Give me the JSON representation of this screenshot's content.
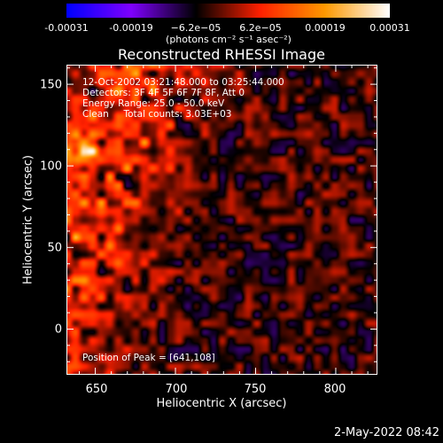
{
  "colorbar": {
    "ticks": [
      "-0.00031",
      "-0.00019",
      "−6.2e−05",
      "6.2e−05",
      "0.00019",
      "0.00031"
    ],
    "units": "(photons cm⁻² s⁻¹ asec⁻²)"
  },
  "chart_data": {
    "type": "heatmap",
    "title": "Reconstructed RHESSI Image",
    "xlabel": "Heliocentric X (arcsec)",
    "ylabel": "Heliocentric Y (arcsec)",
    "xlim": [
      632,
      826
    ],
    "ylim": [
      -28,
      162
    ],
    "xticks": [
      "650",
      "700",
      "750",
      "800"
    ],
    "yticks": [
      "150",
      "100",
      "50",
      "0"
    ],
    "color_range": [
      -0.00031,
      0.00031
    ],
    "colormap_stops": [
      "#0000ff",
      "#7f00ff",
      "#000000",
      "#ff2000",
      "#ff9900",
      "#ffffff"
    ],
    "annotations": [
      "12-Oct-2002 03:21:48.000 to 03:25:44.000",
      "Detectors: 3F 4F 5F 6F 7F 8F, Att 0",
      "Energy Range: 25.0 - 50.0 keV",
      "Clean     Total counts: 3.03E+03"
    ],
    "peak_label": "Position of Peak = [641,108]",
    "peak_position": [
      641,
      108
    ]
  },
  "timestamp": "2-May-2022 08:42"
}
